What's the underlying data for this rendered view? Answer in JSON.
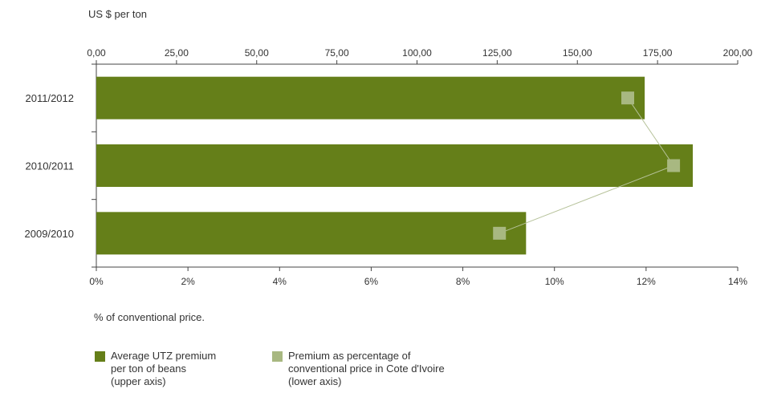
{
  "chart_data": {
    "type": "bar",
    "orientation": "horizontal",
    "categories": [
      "2011/2012",
      "2010/2011",
      "2009/2010"
    ],
    "series": [
      {
        "name": "Average UTZ premium\nper ton of beans\n(upper axis)",
        "axis": "upper",
        "type": "bar",
        "color": "#657f19",
        "values": [
          171,
          186,
          134
        ]
      },
      {
        "name": "Premium as percentage of\nconventional price in Cote d'Ivoire\n(lower axis)",
        "axis": "lower",
        "type": "line",
        "color": "#a8b881",
        "line_color": "#b6c29a",
        "values": [
          11.6,
          12.6,
          8.8
        ]
      }
    ],
    "upper_axis": {
      "label": "US $ per ton",
      "range": [
        0,
        200
      ],
      "tick_labels": [
        "0,00",
        "25,00",
        "50,00",
        "75,00",
        "100,00",
        "125,00",
        "150,00",
        "175,00",
        "200,00"
      ]
    },
    "lower_axis": {
      "label": "% of conventional price.",
      "range": [
        0,
        14
      ],
      "tick_labels": [
        "0%",
        "2%",
        "4%",
        "6%",
        "8%",
        "10%",
        "12%",
        "14%"
      ]
    },
    "grid": false,
    "legend": "bottom-left"
  }
}
